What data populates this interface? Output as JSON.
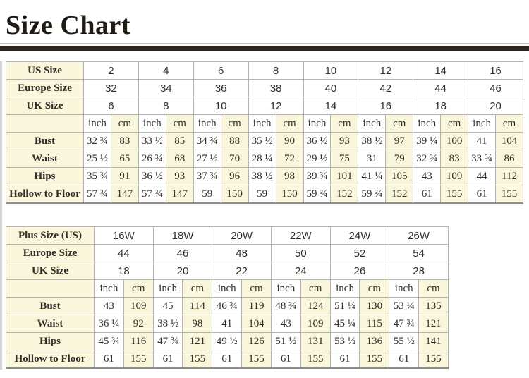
{
  "title": "Size Chart",
  "colors": {
    "accent_bar": "#2c211c",
    "cream_cell": "#faf6dc",
    "white_cell": "#ffffff",
    "border": "#b3b3b3",
    "text": "#332e29"
  },
  "tables": [
    {
      "name": "standard-sizes",
      "size_rows": [
        {
          "label": "US Size",
          "values": [
            "2",
            "4",
            "6",
            "8",
            "10",
            "12",
            "14",
            "16"
          ]
        },
        {
          "label": "Europe Size",
          "values": [
            "32",
            "34",
            "36",
            "38",
            "40",
            "42",
            "44",
            "46"
          ]
        },
        {
          "label": "UK Size",
          "values": [
            "6",
            "8",
            "10",
            "12",
            "14",
            "16",
            "18",
            "20"
          ]
        }
      ],
      "units": [
        "inch",
        "cm"
      ],
      "measure_rows": [
        {
          "label": "Bust",
          "values": [
            "32 ¾",
            "83",
            "33 ½",
            "85",
            "34 ¾",
            "88",
            "35 ½",
            "90",
            "36 ½",
            "93",
            "38 ½",
            "97",
            "39 ¼",
            "100",
            "41",
            "104"
          ]
        },
        {
          "label": "Waist",
          "values": [
            "25 ½",
            "65",
            "26 ¾",
            "68",
            "27 ½",
            "70",
            "28 ¼",
            "72",
            "29 ½",
            "75",
            "31",
            "79",
            "32 ¾",
            "83",
            "33 ¾",
            "86"
          ]
        },
        {
          "label": "Hips",
          "values": [
            "35 ¾",
            "91",
            "36 ½",
            "93",
            "37 ¾",
            "96",
            "38 ½",
            "98",
            "39 ¾",
            "101",
            "41 ¼",
            "105",
            "43",
            "109",
            "44",
            "112"
          ]
        },
        {
          "label": "Hollow to Floor",
          "values": [
            "57 ¾",
            "147",
            "57 ¾",
            "147",
            "59",
            "150",
            "59",
            "150",
            "59 ¾",
            "152",
            "59 ¾",
            "152",
            "61",
            "155",
            "61",
            "155"
          ]
        }
      ]
    },
    {
      "name": "plus-sizes",
      "size_rows": [
        {
          "label": "Plus Size (US)",
          "values": [
            "16W",
            "18W",
            "20W",
            "22W",
            "24W",
            "26W"
          ]
        },
        {
          "label": "Europe Size",
          "values": [
            "44",
            "46",
            "48",
            "50",
            "52",
            "54"
          ]
        },
        {
          "label": "UK Size",
          "values": [
            "18",
            "20",
            "22",
            "24",
            "26",
            "28"
          ]
        }
      ],
      "units": [
        "inch",
        "cm"
      ],
      "measure_rows": [
        {
          "label": "Bust",
          "values": [
            "43",
            "109",
            "45",
            "114",
            "46 ¾",
            "119",
            "48 ¾",
            "124",
            "51 ¼",
            "130",
            "53 ¼",
            "135"
          ]
        },
        {
          "label": "Waist",
          "values": [
            "36 ¼",
            "92",
            "38 ½",
            "98",
            "41",
            "104",
            "43",
            "109",
            "45 ¼",
            "115",
            "47 ¾",
            "121"
          ]
        },
        {
          "label": "Hips",
          "values": [
            "45 ¾",
            "116",
            "47 ¾",
            "121",
            "49 ½",
            "126",
            "51 ½",
            "131",
            "53 ½",
            "136",
            "55 ½",
            "141"
          ]
        },
        {
          "label": "Hollow to Floor",
          "values": [
            "61",
            "155",
            "61",
            "155",
            "61",
            "155",
            "61",
            "155",
            "61",
            "155",
            "61",
            "155"
          ]
        }
      ]
    }
  ]
}
